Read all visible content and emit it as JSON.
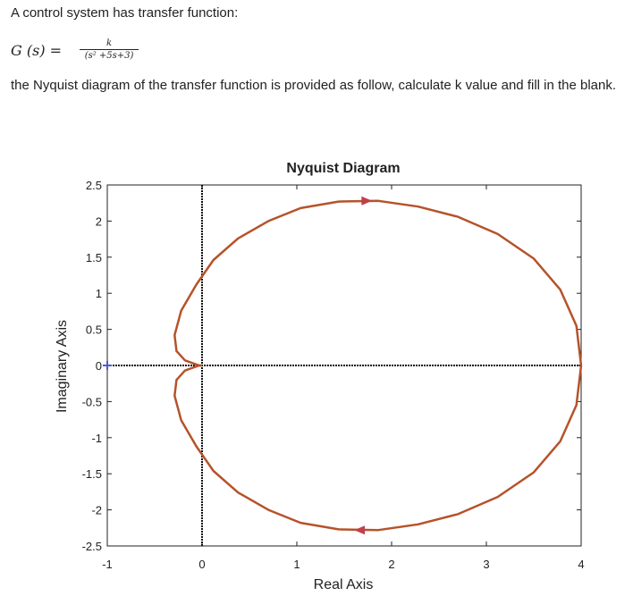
{
  "question": {
    "intro": "A control system has transfer function:",
    "formula_lhs": "G (s) =",
    "formula_num": "k",
    "formula_den": "(s² +5s+3)",
    "text": "the Nyquist diagram of the transfer function is provided as follow, calculate k value and fill in the blank."
  },
  "chart_data": {
    "type": "line",
    "title": "Nyquist Diagram",
    "xlabel": "Real Axis",
    "ylabel": "Imaginary Axis",
    "xlim": [
      -1,
      4
    ],
    "ylim": [
      -2.5,
      2.5
    ],
    "xticks": [
      "-1",
      "0",
      "1",
      "2",
      "3",
      "4"
    ],
    "yticks": [
      "2.5",
      "2",
      "1.5",
      "1",
      "0.5",
      "0",
      "-0.5",
      "-1",
      "-1.5",
      "-2",
      "-2.5"
    ],
    "grid": false,
    "series": [
      {
        "color": "#b5532a",
        "x": [
          4.0,
          3.95,
          3.78,
          3.5,
          3.12,
          2.7,
          2.28,
          1.86,
          1.44,
          1.04,
          0.7,
          0.38,
          0.12,
          -0.06,
          -0.22,
          -0.29,
          -0.27,
          -0.18,
          -0.03,
          0.0
        ],
        "y": [
          0.0,
          0.55,
          1.05,
          1.48,
          1.82,
          2.06,
          2.2,
          2.28,
          2.27,
          2.18,
          2.0,
          1.76,
          1.46,
          1.12,
          0.76,
          0.42,
          0.2,
          0.07,
          0.0,
          0.0
        ]
      },
      {
        "color": "#b5532a",
        "x": [
          4.0,
          3.95,
          3.78,
          3.5,
          3.12,
          2.7,
          2.28,
          1.86,
          1.44,
          1.04,
          0.7,
          0.38,
          0.12,
          -0.06,
          -0.22,
          -0.29,
          -0.27,
          -0.18,
          -0.03,
          0.0
        ],
        "y": [
          0.0,
          -0.55,
          -1.05,
          -1.48,
          -1.82,
          -2.06,
          -2.2,
          -2.28,
          -2.27,
          -2.18,
          -2.0,
          -1.76,
          -1.46,
          -1.12,
          -0.76,
          -0.42,
          -0.2,
          -0.07,
          0.0,
          0.0
        ]
      }
    ],
    "arrows": [
      {
        "x": 1.72,
        "y": 2.28,
        "direction": "right"
      },
      {
        "x": 1.68,
        "y": -2.28,
        "direction": "left"
      }
    ],
    "markers": [
      {
        "x": -1.0,
        "y": 0.0,
        "symbol": "+",
        "color": "#4a5bd4"
      }
    ],
    "reference_lines": [
      {
        "orientation": "vertical",
        "value": 0,
        "style": "dotted"
      },
      {
        "orientation": "horizontal",
        "value": 0,
        "style": "dotted"
      }
    ],
    "colors": {
      "curve": "#b5532a",
      "arrow": "#c0404a",
      "marker": "#4a5bd4",
      "axes": "#222222"
    }
  }
}
